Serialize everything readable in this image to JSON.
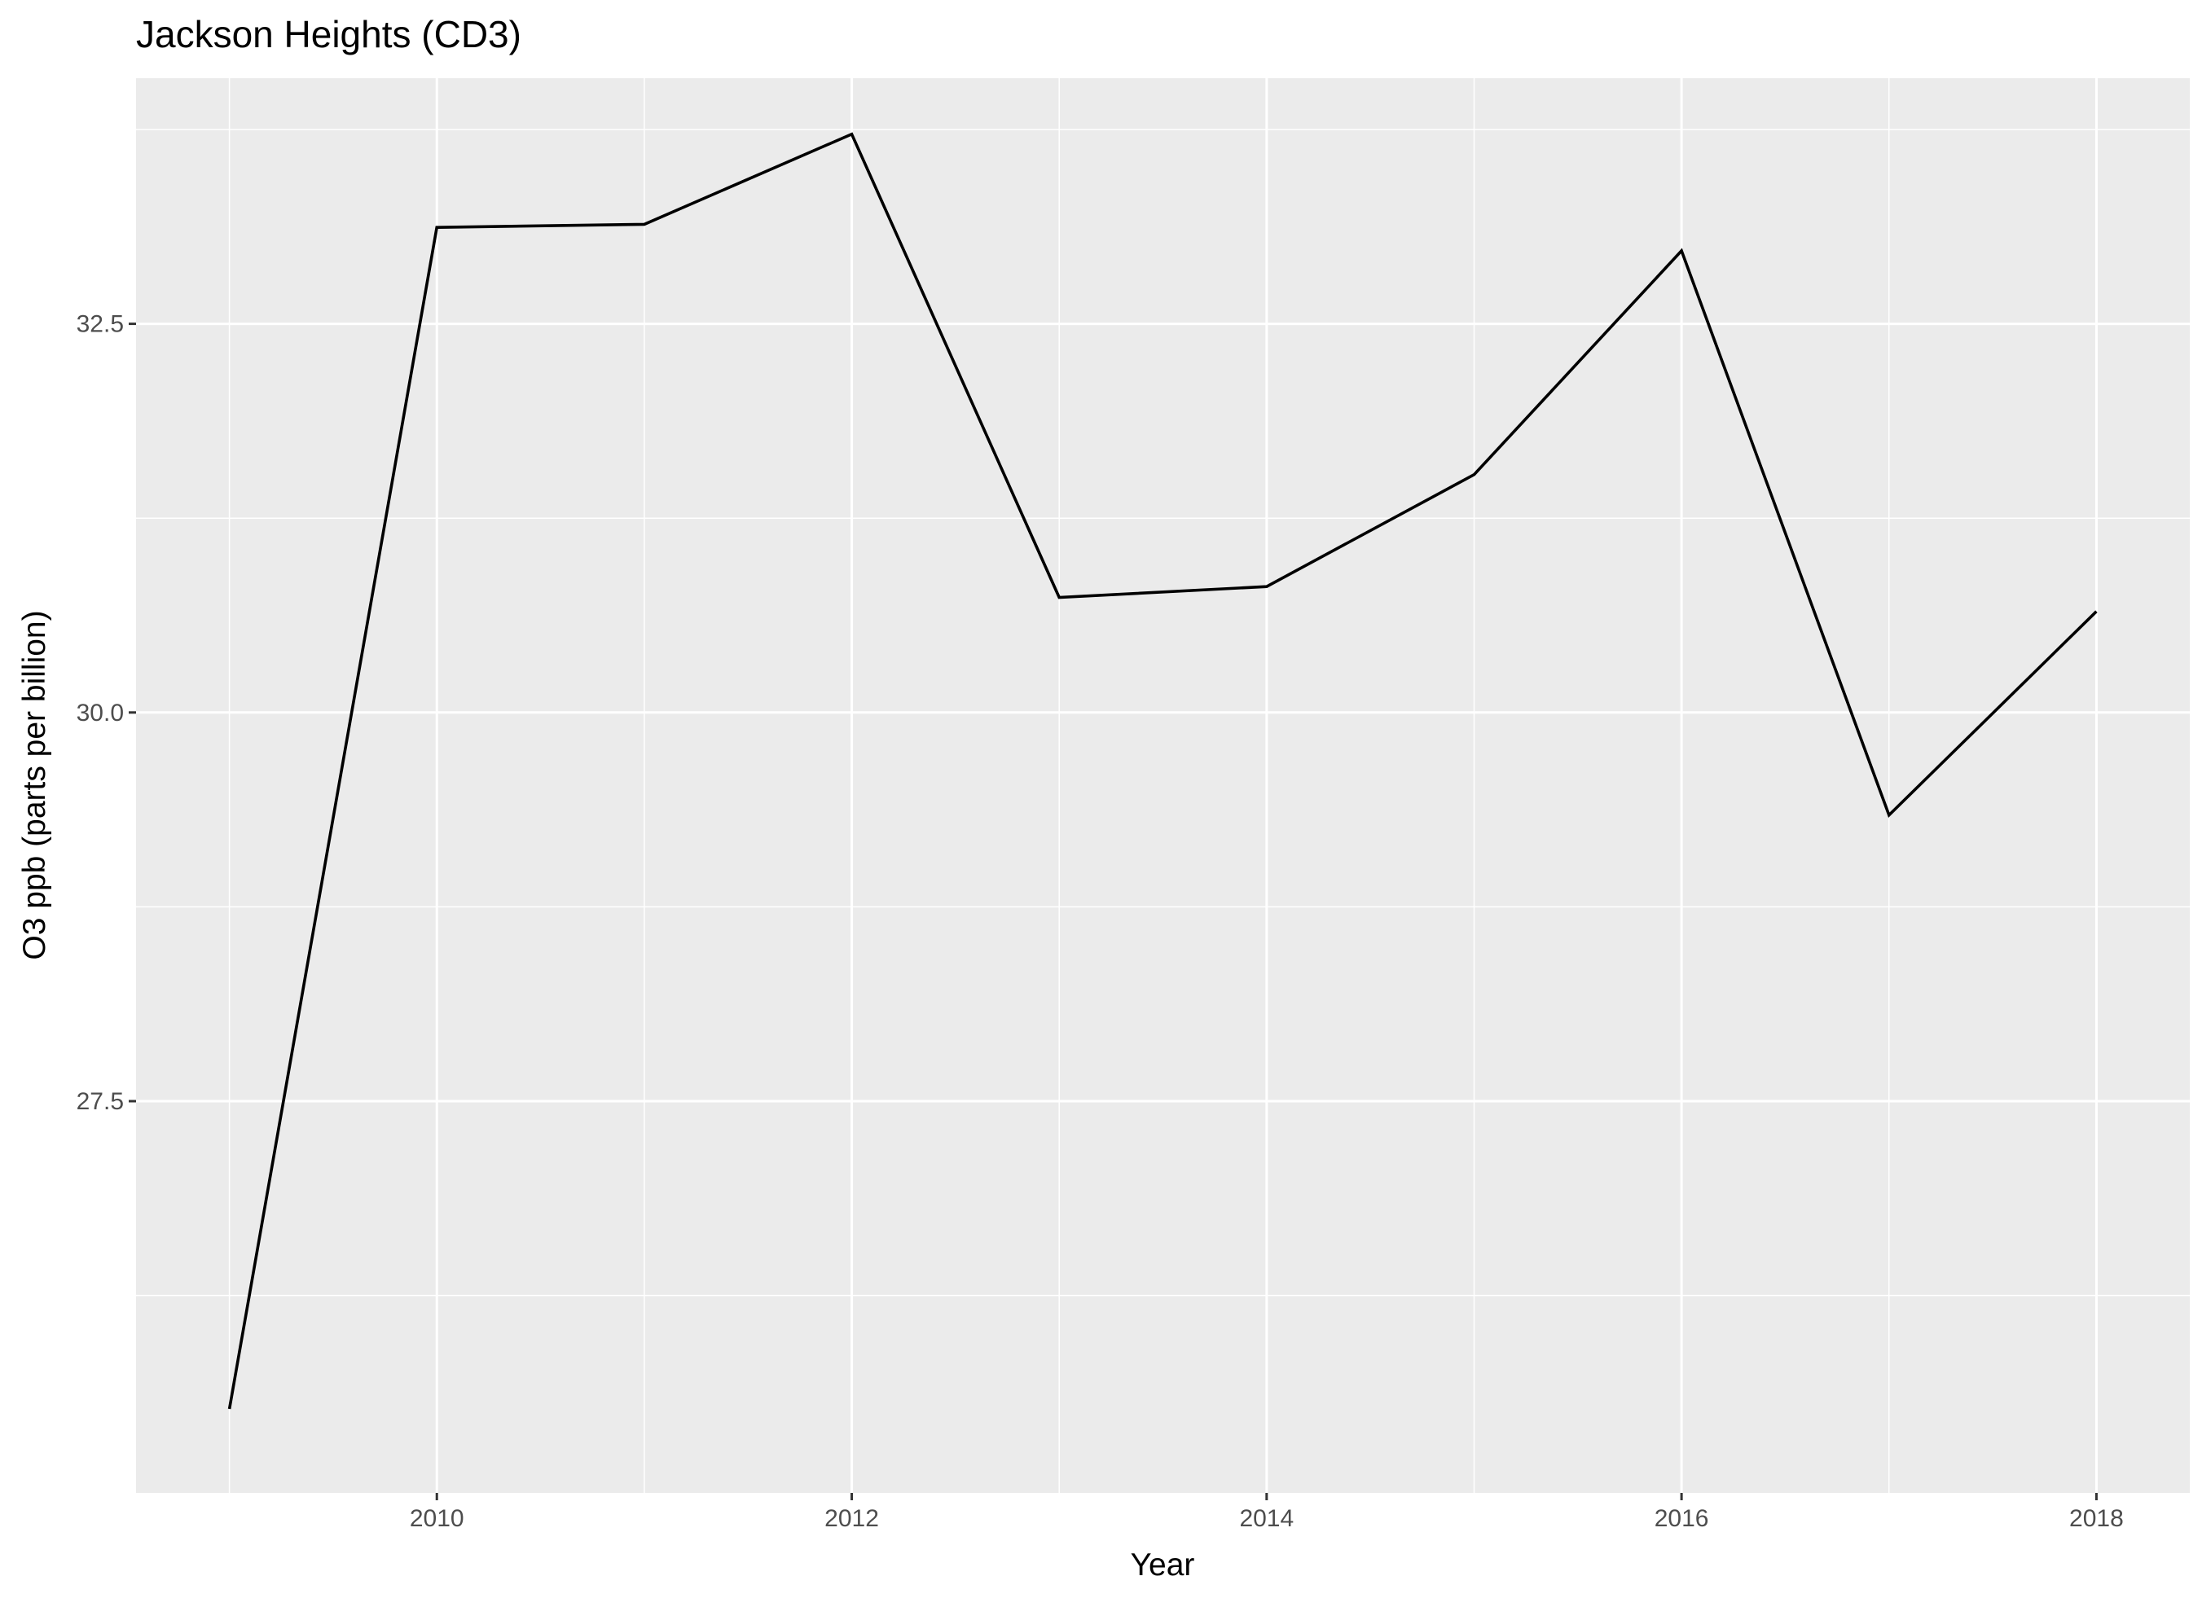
{
  "chart_data": {
    "type": "line",
    "title": "Jackson Heights (CD3)",
    "xlabel": "Year",
    "ylabel": "O3 ppb (parts per billion)",
    "x": [
      2009,
      2010,
      2011,
      2012,
      2013,
      2014,
      2015,
      2016,
      2017,
      2018
    ],
    "series": [
      {
        "values": [
          25.52,
          33.12,
          33.14,
          33.72,
          30.74,
          30.81,
          31.53,
          32.97,
          29.34,
          30.65
        ]
      }
    ],
    "xlim": [
      2008.55,
      2018.45
    ],
    "ylim": [
      24.98,
      34.08
    ],
    "x_ticks": [
      2010,
      2012,
      2014,
      2016,
      2018
    ],
    "x_tick_labels": [
      "2010",
      "2012",
      "2014",
      "2016",
      "2018"
    ],
    "y_ticks": [
      27.5,
      30.0,
      32.5
    ],
    "y_tick_labels": [
      "27.5",
      "30.0",
      "32.5"
    ],
    "x_minor_ticks": [
      2009,
      2011,
      2013,
      2015,
      2017
    ],
    "y_minor_ticks": [
      26.25,
      28.75,
      31.25,
      33.75
    ],
    "grid": true,
    "legend": "none",
    "colors": {
      "panel_background": "#ebebeb",
      "grid": "#ffffff",
      "line": "#000000",
      "tick_text": "#4d4d4d",
      "tick_mark": "#333333"
    }
  }
}
